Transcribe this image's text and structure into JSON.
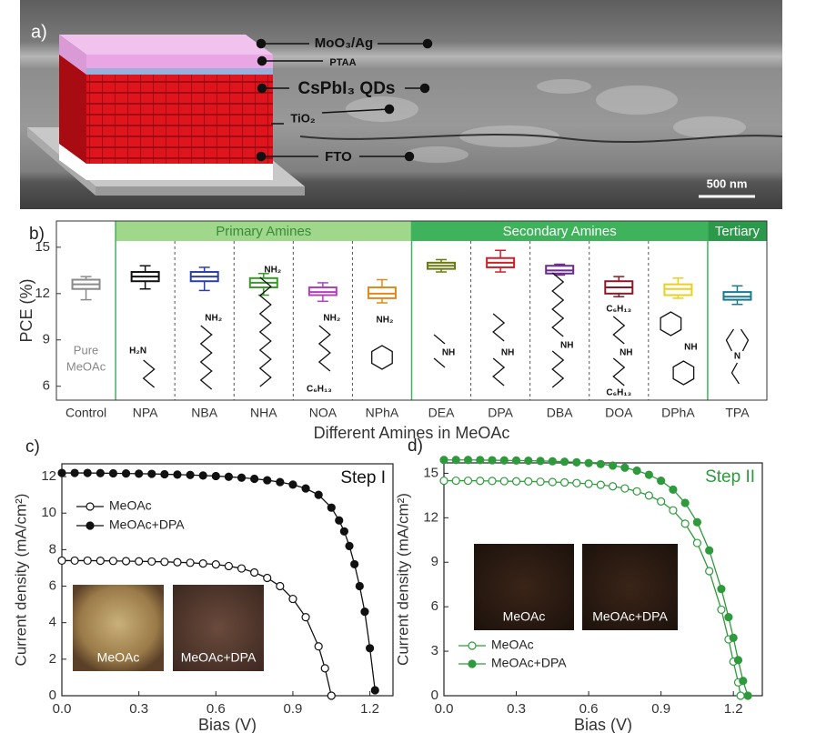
{
  "panel_a": {
    "label": "a)",
    "layers": [
      "MoO₃/Ag",
      "PTAA",
      "CsPbI₃ QDs",
      "TiO₂",
      "FTO"
    ],
    "scale_bar": "500 nm"
  },
  "chart_data": [
    {
      "type": "box",
      "panel_label": "b)",
      "ylabel": "PCE (%)",
      "xlabel": "Different Amines in MeOAc",
      "categories": [
        "Control",
        "NPA",
        "NBA",
        "NHA",
        "NOA",
        "NPhA",
        "DEA",
        "DPA",
        "DBA",
        "DOA",
        "DPhA",
        "TPA"
      ],
      "groups": [
        {
          "name": "Primary Amines",
          "color": "#9fd88a",
          "members": [
            "NPA",
            "NBA",
            "NHA",
            "NOA",
            "NPhA"
          ]
        },
        {
          "name": "Secondary Amines",
          "color": "#3fb35c",
          "members": [
            "DEA",
            "DPA",
            "DBA",
            "DOA",
            "DPhA"
          ]
        },
        {
          "name": "Tertiary",
          "color": "#2a9a4a",
          "members": [
            "TPA"
          ]
        }
      ],
      "boxes": [
        {
          "min": 11.6,
          "q1": 12.3,
          "median": 12.6,
          "q3": 12.9,
          "max": 13.1,
          "color": "#8a8a8a"
        },
        {
          "min": 12.3,
          "q1": 12.8,
          "median": 13.1,
          "q3": 13.4,
          "max": 13.8,
          "color": "#111111"
        },
        {
          "min": 12.2,
          "q1": 12.8,
          "median": 13.1,
          "q3": 13.4,
          "max": 13.7,
          "color": "#2b3fa8"
        },
        {
          "min": 11.9,
          "q1": 12.4,
          "median": 12.7,
          "q3": 13.0,
          "max": 13.3,
          "color": "#3a9a2a"
        },
        {
          "min": 11.5,
          "q1": 11.9,
          "median": 12.1,
          "q3": 12.4,
          "max": 12.7,
          "color": "#b040c0"
        },
        {
          "min": 11.4,
          "q1": 11.7,
          "median": 12.0,
          "q3": 12.4,
          "max": 12.9,
          "color": "#e08a1a"
        },
        {
          "min": 13.4,
          "q1": 13.6,
          "median": 13.8,
          "q3": 14.0,
          "max": 14.2,
          "color": "#6b7a10"
        },
        {
          "min": 13.4,
          "q1": 13.7,
          "median": 14.0,
          "q3": 14.3,
          "max": 14.8,
          "color": "#d0202a"
        },
        {
          "min": 13.2,
          "q1": 13.3,
          "median": 13.5,
          "q3": 13.8,
          "max": 13.9,
          "color": "#6a2a8a"
        },
        {
          "min": 11.8,
          "q1": 12.0,
          "median": 12.4,
          "q3": 12.8,
          "max": 13.1,
          "color": "#8a1a2a"
        },
        {
          "min": 11.7,
          "q1": 11.9,
          "median": 12.3,
          "q3": 12.6,
          "max": 13.0,
          "color": "#e8d020"
        },
        {
          "min": 11.3,
          "q1": 11.6,
          "median": 11.8,
          "q3": 12.1,
          "max": 12.5,
          "color": "#1a7a8a"
        }
      ],
      "molecule_labels": [
        [
          "Pure",
          "MeOAc"
        ],
        [
          "H₂N"
        ],
        [
          "NH₂"
        ],
        [
          "NH₂"
        ],
        [
          "NH₂",
          "C₆H₁₃"
        ],
        [
          "NH₂"
        ],
        [
          "NH"
        ],
        [
          "NH"
        ],
        [
          "NH"
        ],
        [
          "C₆H₁₃",
          "NH",
          "C₆H₁₃"
        ],
        [
          "NH"
        ],
        [
          "N"
        ]
      ],
      "ylim": [
        5.1,
        16.7
      ],
      "yticks": [
        6,
        9,
        12,
        15
      ]
    },
    {
      "type": "line",
      "panel_label": "c)",
      "xlabel": "Bias (V)",
      "ylabel": "Current density (mA/cm²)",
      "annotation": "Step I",
      "annotation_color": "#111111",
      "legend": "upper left",
      "insets": [
        "MeOAc",
        "MeOAc+DPA"
      ],
      "xlim": [
        0,
        1.29
      ],
      "xticks": [
        {
          "value": 0,
          "label": "0.0"
        },
        0.3,
        0.6,
        0.9,
        1.2
      ],
      "ylim": [
        0,
        12.7
      ],
      "yticks": [
        0,
        2,
        4,
        6,
        8,
        10,
        12
      ],
      "series": [
        {
          "name": "MeOAc",
          "color": "#111111",
          "marker": "open",
          "x": [
            0,
            0.05,
            0.1,
            0.15,
            0.2,
            0.25,
            0.3,
            0.35,
            0.4,
            0.45,
            0.5,
            0.55,
            0.6,
            0.65,
            0.7,
            0.75,
            0.8,
            0.85,
            0.9,
            0.95,
            1.0,
            1.025,
            1.05
          ],
          "values": [
            7.4,
            7.4,
            7.4,
            7.39,
            7.38,
            7.37,
            7.36,
            7.35,
            7.33,
            7.31,
            7.28,
            7.24,
            7.19,
            7.1,
            6.97,
            6.75,
            6.45,
            6.0,
            5.3,
            4.3,
            2.7,
            1.5,
            0.0
          ]
        },
        {
          "name": "MeOAc+DPA",
          "color": "#111111",
          "marker": "filled",
          "x": [
            0,
            0.05,
            0.1,
            0.15,
            0.2,
            0.25,
            0.3,
            0.35,
            0.4,
            0.45,
            0.5,
            0.55,
            0.6,
            0.65,
            0.7,
            0.75,
            0.8,
            0.85,
            0.9,
            0.95,
            1.0,
            1.05,
            1.08,
            1.1,
            1.12,
            1.14,
            1.16,
            1.18,
            1.2,
            1.22
          ],
          "values": [
            12.2,
            12.2,
            12.2,
            12.19,
            12.18,
            12.17,
            12.16,
            12.15,
            12.13,
            12.11,
            12.09,
            12.06,
            12.03,
            11.99,
            11.94,
            11.88,
            11.8,
            11.7,
            11.56,
            11.35,
            11.0,
            10.3,
            9.6,
            9.0,
            8.2,
            7.2,
            6.0,
            4.6,
            2.6,
            0.3
          ]
        }
      ]
    },
    {
      "type": "line",
      "panel_label": "d)",
      "xlabel": "Bias (V)",
      "ylabel": "Current density (mA/cm²)",
      "annotation": "Step II",
      "annotation_color": "#2e9a3c",
      "legend": "lower left",
      "insets": [
        "MeOAc",
        "MeOAc+DPA"
      ],
      "xlim": [
        0,
        1.32
      ],
      "xticks": [
        {
          "value": 0,
          "label": "0.0"
        },
        0.3,
        0.6,
        0.9,
        1.2
      ],
      "ylim": [
        0,
        15.7
      ],
      "yticks": [
        0,
        3,
        6,
        9,
        12,
        15
      ],
      "series": [
        {
          "name": "MeOAc",
          "color": "#2e9a3c",
          "marker": "open",
          "x": [
            0,
            0.05,
            0.1,
            0.15,
            0.2,
            0.25,
            0.3,
            0.35,
            0.4,
            0.45,
            0.5,
            0.55,
            0.6,
            0.65,
            0.7,
            0.75,
            0.8,
            0.85,
            0.9,
            0.95,
            1.0,
            1.05,
            1.1,
            1.15,
            1.18,
            1.2,
            1.22,
            1.23
          ],
          "values": [
            14.5,
            14.5,
            14.5,
            14.49,
            14.48,
            14.47,
            14.46,
            14.45,
            14.43,
            14.41,
            14.38,
            14.34,
            14.29,
            14.22,
            14.12,
            13.98,
            13.78,
            13.5,
            13.1,
            12.5,
            11.6,
            10.3,
            8.4,
            5.8,
            3.8,
            2.3,
            0.9,
            0.0
          ]
        },
        {
          "name": "MeOAc+DPA",
          "color": "#2e9a3c",
          "marker": "filled",
          "x": [
            0,
            0.05,
            0.1,
            0.15,
            0.2,
            0.25,
            0.3,
            0.35,
            0.4,
            0.45,
            0.5,
            0.55,
            0.6,
            0.65,
            0.7,
            0.75,
            0.8,
            0.85,
            0.9,
            0.95,
            1.0,
            1.05,
            1.1,
            1.15,
            1.18,
            1.2,
            1.22,
            1.24,
            1.26
          ],
          "values": [
            15.9,
            15.9,
            15.9,
            15.89,
            15.88,
            15.87,
            15.86,
            15.85,
            15.83,
            15.81,
            15.78,
            15.74,
            15.69,
            15.62,
            15.52,
            15.38,
            15.18,
            14.9,
            14.5,
            13.9,
            13.0,
            11.7,
            9.8,
            7.2,
            5.3,
            3.9,
            2.4,
            1.0,
            0.0
          ]
        }
      ]
    }
  ]
}
